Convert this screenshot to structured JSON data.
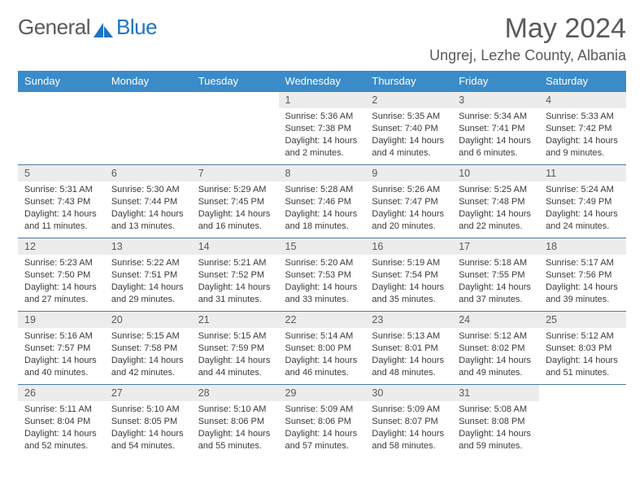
{
  "brand": {
    "name": "General",
    "accent_word": "Blue"
  },
  "title": {
    "month": "May 2024",
    "location": "Ungrej, Lezhe County, Albania"
  },
  "colors": {
    "header_bg": "#3b8bc9",
    "header_text": "#ffffff",
    "daynum_bg": "#ececec",
    "cell_border": "#4a7ba8",
    "body_text": "#3a3a3a",
    "muted_text": "#5a5a5a",
    "logo_blue": "#1d74c4"
  },
  "weekdays": [
    "Sunday",
    "Monday",
    "Tuesday",
    "Wednesday",
    "Thursday",
    "Friday",
    "Saturday"
  ],
  "layout": {
    "first_weekday_index": 3,
    "days_in_month": 31
  },
  "days": {
    "1": {
      "sunrise": "5:36 AM",
      "sunset": "7:38 PM",
      "daylight": "14 hours and 2 minutes."
    },
    "2": {
      "sunrise": "5:35 AM",
      "sunset": "7:40 PM",
      "daylight": "14 hours and 4 minutes."
    },
    "3": {
      "sunrise": "5:34 AM",
      "sunset": "7:41 PM",
      "daylight": "14 hours and 6 minutes."
    },
    "4": {
      "sunrise": "5:33 AM",
      "sunset": "7:42 PM",
      "daylight": "14 hours and 9 minutes."
    },
    "5": {
      "sunrise": "5:31 AM",
      "sunset": "7:43 PM",
      "daylight": "14 hours and 11 minutes."
    },
    "6": {
      "sunrise": "5:30 AM",
      "sunset": "7:44 PM",
      "daylight": "14 hours and 13 minutes."
    },
    "7": {
      "sunrise": "5:29 AM",
      "sunset": "7:45 PM",
      "daylight": "14 hours and 16 minutes."
    },
    "8": {
      "sunrise": "5:28 AM",
      "sunset": "7:46 PM",
      "daylight": "14 hours and 18 minutes."
    },
    "9": {
      "sunrise": "5:26 AM",
      "sunset": "7:47 PM",
      "daylight": "14 hours and 20 minutes."
    },
    "10": {
      "sunrise": "5:25 AM",
      "sunset": "7:48 PM",
      "daylight": "14 hours and 22 minutes."
    },
    "11": {
      "sunrise": "5:24 AM",
      "sunset": "7:49 PM",
      "daylight": "14 hours and 24 minutes."
    },
    "12": {
      "sunrise": "5:23 AM",
      "sunset": "7:50 PM",
      "daylight": "14 hours and 27 minutes."
    },
    "13": {
      "sunrise": "5:22 AM",
      "sunset": "7:51 PM",
      "daylight": "14 hours and 29 minutes."
    },
    "14": {
      "sunrise": "5:21 AM",
      "sunset": "7:52 PM",
      "daylight": "14 hours and 31 minutes."
    },
    "15": {
      "sunrise": "5:20 AM",
      "sunset": "7:53 PM",
      "daylight": "14 hours and 33 minutes."
    },
    "16": {
      "sunrise": "5:19 AM",
      "sunset": "7:54 PM",
      "daylight": "14 hours and 35 minutes."
    },
    "17": {
      "sunrise": "5:18 AM",
      "sunset": "7:55 PM",
      "daylight": "14 hours and 37 minutes."
    },
    "18": {
      "sunrise": "5:17 AM",
      "sunset": "7:56 PM",
      "daylight": "14 hours and 39 minutes."
    },
    "19": {
      "sunrise": "5:16 AM",
      "sunset": "7:57 PM",
      "daylight": "14 hours and 40 minutes."
    },
    "20": {
      "sunrise": "5:15 AM",
      "sunset": "7:58 PM",
      "daylight": "14 hours and 42 minutes."
    },
    "21": {
      "sunrise": "5:15 AM",
      "sunset": "7:59 PM",
      "daylight": "14 hours and 44 minutes."
    },
    "22": {
      "sunrise": "5:14 AM",
      "sunset": "8:00 PM",
      "daylight": "14 hours and 46 minutes."
    },
    "23": {
      "sunrise": "5:13 AM",
      "sunset": "8:01 PM",
      "daylight": "14 hours and 48 minutes."
    },
    "24": {
      "sunrise": "5:12 AM",
      "sunset": "8:02 PM",
      "daylight": "14 hours and 49 minutes."
    },
    "25": {
      "sunrise": "5:12 AM",
      "sunset": "8:03 PM",
      "daylight": "14 hours and 51 minutes."
    },
    "26": {
      "sunrise": "5:11 AM",
      "sunset": "8:04 PM",
      "daylight": "14 hours and 52 minutes."
    },
    "27": {
      "sunrise": "5:10 AM",
      "sunset": "8:05 PM",
      "daylight": "14 hours and 54 minutes."
    },
    "28": {
      "sunrise": "5:10 AM",
      "sunset": "8:06 PM",
      "daylight": "14 hours and 55 minutes."
    },
    "29": {
      "sunrise": "5:09 AM",
      "sunset": "8:06 PM",
      "daylight": "14 hours and 57 minutes."
    },
    "30": {
      "sunrise": "5:09 AM",
      "sunset": "8:07 PM",
      "daylight": "14 hours and 58 minutes."
    },
    "31": {
      "sunrise": "5:08 AM",
      "sunset": "8:08 PM",
      "daylight": "14 hours and 59 minutes."
    }
  },
  "labels": {
    "sunrise": "Sunrise:",
    "sunset": "Sunset:",
    "daylight": "Daylight:"
  }
}
